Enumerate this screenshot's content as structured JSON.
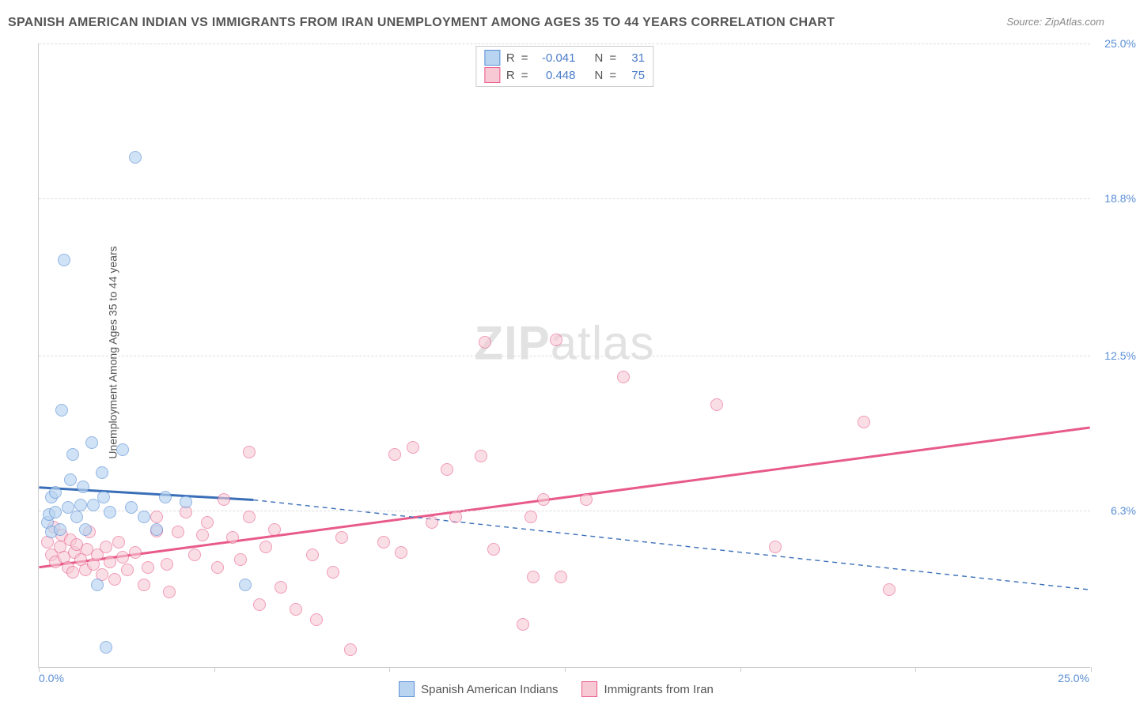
{
  "title": "SPANISH AMERICAN INDIAN VS IMMIGRANTS FROM IRAN UNEMPLOYMENT AMONG AGES 35 TO 44 YEARS CORRELATION CHART",
  "source_prefix": "Source: ",
  "source_name": "ZipAtlas.com",
  "yaxis_label": "Unemployment Among Ages 35 to 44 years",
  "watermark_1": "ZIP",
  "watermark_2": "atlas",
  "chart": {
    "type": "scatter",
    "xlim": [
      0,
      25
    ],
    "ylim": [
      0,
      25
    ],
    "x_ticks": [
      0,
      4.17,
      8.33,
      12.5,
      16.67,
      20.83,
      25
    ],
    "x_tick_labels_shown": {
      "0": "0.0%",
      "25": "25.0%"
    },
    "y_ticks": [
      6.3,
      12.5,
      18.8,
      25.0
    ],
    "y_tick_labels": [
      "6.3%",
      "12.5%",
      "18.8%",
      "25.0%"
    ],
    "grid_color": "#dddddd",
    "background_color": "#ffffff",
    "axis_color": "#cccccc",
    "tick_label_color": "#5a8fd6",
    "point_radius": 8,
    "point_stroke_width": 1.2,
    "series": [
      {
        "id": "sai",
        "label": "Spanish American Indians",
        "fill": "#b8d4f0",
        "stroke": "#5a8fd6",
        "fill_opacity": 0.65,
        "r_value": "-0.041",
        "n_value": "31",
        "trend": {
          "solid": {
            "x1": 0,
            "y1": 7.2,
            "x2": 5.1,
            "y2": 6.7,
            "width": 3
          },
          "dashed": {
            "x1": 5.1,
            "y1": 6.7,
            "x2": 25,
            "y2": 3.1,
            "width": 1.4,
            "dash": "6,5"
          }
        },
        "points": [
          [
            0.2,
            5.8
          ],
          [
            0.25,
            6.1
          ],
          [
            0.3,
            6.8
          ],
          [
            0.3,
            5.4
          ],
          [
            0.4,
            7.0
          ],
          [
            0.4,
            6.2
          ],
          [
            0.5,
            5.5
          ],
          [
            0.55,
            10.3
          ],
          [
            0.6,
            16.3
          ],
          [
            0.7,
            6.4
          ],
          [
            0.75,
            7.5
          ],
          [
            0.8,
            8.5
          ],
          [
            0.9,
            6.0
          ],
          [
            1.0,
            6.5
          ],
          [
            1.05,
            7.2
          ],
          [
            1.1,
            5.5
          ],
          [
            1.25,
            9.0
          ],
          [
            1.3,
            6.5
          ],
          [
            1.4,
            3.3
          ],
          [
            1.5,
            7.8
          ],
          [
            1.55,
            6.8
          ],
          [
            1.6,
            0.8
          ],
          [
            1.7,
            6.2
          ],
          [
            2.0,
            8.7
          ],
          [
            2.2,
            6.4
          ],
          [
            2.3,
            20.4
          ],
          [
            2.5,
            6.0
          ],
          [
            2.8,
            5.5
          ],
          [
            3.0,
            6.8
          ],
          [
            3.5,
            6.6
          ],
          [
            4.9,
            3.3
          ]
        ]
      },
      {
        "id": "iran",
        "label": "Immigrants from Iran",
        "fill": "#f7c9d4",
        "stroke": "#e85a8a",
        "fill_opacity": 0.6,
        "r_value": "0.448",
        "n_value": "75",
        "trend": {
          "solid": {
            "x1": 0,
            "y1": 4.0,
            "x2": 25,
            "y2": 9.6,
            "width": 3
          }
        },
        "points": [
          [
            0.2,
            5.0
          ],
          [
            0.3,
            4.5
          ],
          [
            0.35,
            5.6
          ],
          [
            0.4,
            4.2
          ],
          [
            0.5,
            4.8
          ],
          [
            0.55,
            5.3
          ],
          [
            0.6,
            4.4
          ],
          [
            0.7,
            4.0
          ],
          [
            0.75,
            5.1
          ],
          [
            0.8,
            3.8
          ],
          [
            0.85,
            4.6
          ],
          [
            0.9,
            4.9
          ],
          [
            1.0,
            4.3
          ],
          [
            1.1,
            3.9
          ],
          [
            1.15,
            4.7
          ],
          [
            1.2,
            5.4
          ],
          [
            1.3,
            4.1
          ],
          [
            1.4,
            4.5
          ],
          [
            1.5,
            3.7
          ],
          [
            1.6,
            4.8
          ],
          [
            1.7,
            4.2
          ],
          [
            1.8,
            3.5
          ],
          [
            1.9,
            5.0
          ],
          [
            2.0,
            4.4
          ],
          [
            2.1,
            3.9
          ],
          [
            2.3,
            4.6
          ],
          [
            2.5,
            3.3
          ],
          [
            2.6,
            4.0
          ],
          [
            2.8,
            6.0
          ],
          [
            2.8,
            5.45
          ],
          [
            3.05,
            4.1
          ],
          [
            3.1,
            3.0
          ],
          [
            3.3,
            5.4
          ],
          [
            3.5,
            6.2
          ],
          [
            3.7,
            4.5
          ],
          [
            3.9,
            5.3
          ],
          [
            4.0,
            5.8
          ],
          [
            4.25,
            4.0
          ],
          [
            4.4,
            6.7
          ],
          [
            4.6,
            5.2
          ],
          [
            4.8,
            4.3
          ],
          [
            5.0,
            6.0
          ],
          [
            5.0,
            8.6
          ],
          [
            5.25,
            2.5
          ],
          [
            5.4,
            4.8
          ],
          [
            5.6,
            5.5
          ],
          [
            5.75,
            3.2
          ],
          [
            6.1,
            2.3
          ],
          [
            6.5,
            4.5
          ],
          [
            6.6,
            1.9
          ],
          [
            7.0,
            3.8
          ],
          [
            7.2,
            5.2
          ],
          [
            7.4,
            0.7
          ],
          [
            8.2,
            5.0
          ],
          [
            8.45,
            8.5
          ],
          [
            8.6,
            4.6
          ],
          [
            8.9,
            8.8
          ],
          [
            9.35,
            5.8
          ],
          [
            9.7,
            7.9
          ],
          [
            9.9,
            6.0
          ],
          [
            10.5,
            8.45
          ],
          [
            10.6,
            13.0
          ],
          [
            10.8,
            4.7
          ],
          [
            11.5,
            1.7
          ],
          [
            11.7,
            6.0
          ],
          [
            11.75,
            3.6
          ],
          [
            12.0,
            6.7
          ],
          [
            12.3,
            13.1
          ],
          [
            12.4,
            3.6
          ],
          [
            13.0,
            6.7
          ],
          [
            13.9,
            11.6
          ],
          [
            16.1,
            10.5
          ],
          [
            17.5,
            4.8
          ],
          [
            19.6,
            9.8
          ],
          [
            20.2,
            3.1
          ]
        ]
      }
    ]
  },
  "legend_top": {
    "r_label": "R",
    "n_label": "N",
    "eq": "="
  }
}
